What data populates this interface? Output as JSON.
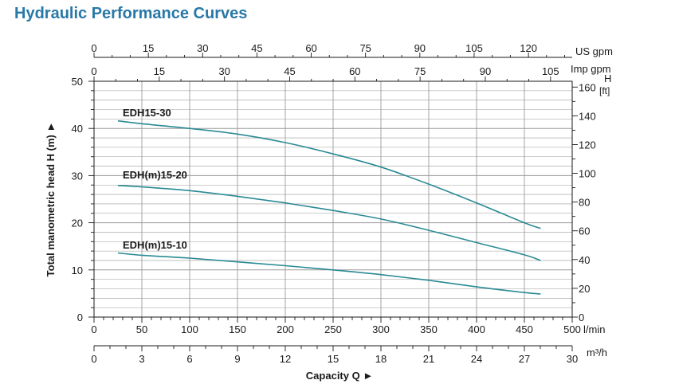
{
  "page": {
    "title": "Hydraulic Performance Curves"
  },
  "colors": {
    "title": "#2878a8",
    "curve": "#2a8a94",
    "grid": "#9a9a9a",
    "axis": "#1a1a1a"
  },
  "chart_data": {
    "type": "line",
    "title": "Hydraulic Performance Curves",
    "xlabel": "Capacity Q",
    "ylabel": "Total manometric head H (m)",
    "grid": true,
    "x": {
      "label": "l/min",
      "range": [
        0,
        500
      ],
      "ticks": [
        0,
        50,
        100,
        150,
        200,
        250,
        300,
        350,
        400,
        450,
        500
      ],
      "tick_labels": [
        "0",
        "50",
        "100",
        "150",
        "200",
        "250",
        "300",
        "350",
        "400",
        "450",
        "500"
      ],
      "unit": "l/min"
    },
    "x_m3h": {
      "unit": "m³/h",
      "tick_labels": [
        "0",
        "3",
        "6",
        "9",
        "12",
        "15",
        "18",
        "21",
        "24",
        "27",
        "30"
      ]
    },
    "x_us_gpm": {
      "unit": "US gpm",
      "tick_labels": [
        "0",
        "15",
        "30",
        "45",
        "60",
        "75",
        "90",
        "105",
        "120"
      ]
    },
    "x_imp_gpm": {
      "unit": "Imp gpm",
      "tick_labels": [
        "0",
        "15",
        "30",
        "45",
        "60",
        "75",
        "90",
        "105"
      ]
    },
    "y": {
      "unit": "m",
      "range": [
        0,
        50
      ],
      "ticks": [
        0,
        10,
        20,
        30,
        40,
        50
      ],
      "tick_labels": [
        "0",
        "10",
        "20",
        "30",
        "40",
        "50"
      ]
    },
    "y_ft": {
      "unit_label": "H",
      "unit_sub": "[ft]",
      "tick_labels": [
        "0",
        "20",
        "40",
        "60",
        "80",
        "100",
        "120",
        "140",
        "160"
      ]
    },
    "series": [
      {
        "name": "EDH15-30",
        "x": [
          25,
          50,
          100,
          150,
          200,
          250,
          300,
          350,
          400,
          450,
          467
        ],
        "values": [
          41.6,
          41.0,
          40.0,
          38.8,
          37.0,
          34.6,
          31.8,
          28.2,
          24.2,
          20.0,
          18.8
        ]
      },
      {
        "name": "EDH(m)15-20",
        "x": [
          25,
          50,
          100,
          150,
          200,
          250,
          300,
          350,
          400,
          450,
          467
        ],
        "values": [
          27.9,
          27.6,
          26.8,
          25.6,
          24.2,
          22.6,
          20.8,
          18.4,
          15.8,
          13.2,
          12.0
        ]
      },
      {
        "name": "EDH(m)15-10",
        "x": [
          25,
          50,
          100,
          150,
          200,
          250,
          300,
          350,
          400,
          450,
          467
        ],
        "values": [
          13.6,
          13.1,
          12.5,
          11.7,
          10.9,
          10.0,
          9.0,
          7.8,
          6.4,
          5.2,
          4.9
        ]
      }
    ]
  }
}
